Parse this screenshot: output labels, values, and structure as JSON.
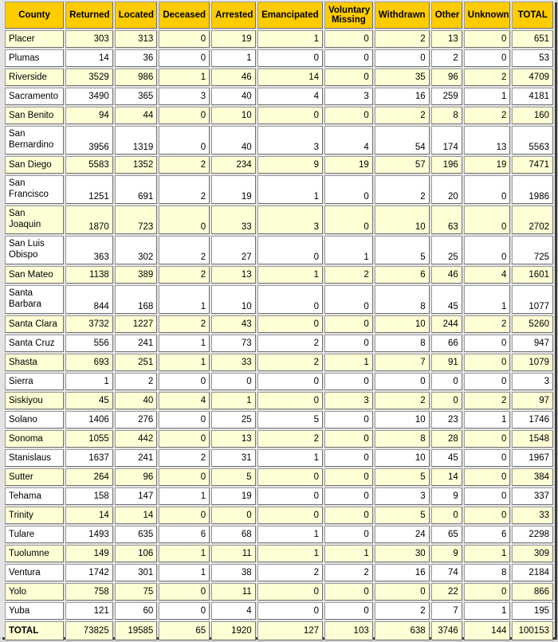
{
  "columns": [
    "County",
    "Returned",
    "Located",
    "Deceased",
    "Arrested",
    "Emancipated",
    "Voluntary\nMissing",
    "Withdrawn",
    "Other",
    "Unknown",
    "TOTAL"
  ],
  "rows": [
    [
      "Placer",
      303,
      313,
      0,
      19,
      1,
      0,
      2,
      13,
      0,
      651
    ],
    [
      "Plumas",
      14,
      36,
      0,
      1,
      0,
      0,
      0,
      2,
      0,
      53
    ],
    [
      "Riverside",
      3529,
      986,
      1,
      46,
      14,
      0,
      35,
      96,
      2,
      4709
    ],
    [
      "Sacramento",
      3490,
      365,
      3,
      40,
      4,
      3,
      16,
      259,
      1,
      4181
    ],
    [
      "San Benito",
      94,
      44,
      0,
      10,
      0,
      0,
      2,
      8,
      2,
      160
    ],
    [
      "San\nBernardino",
      3956,
      1319,
      0,
      40,
      3,
      4,
      54,
      174,
      13,
      5563
    ],
    [
      "San Diego",
      5583,
      1352,
      2,
      234,
      9,
      19,
      57,
      196,
      19,
      7471
    ],
    [
      "San\nFrancisco",
      1251,
      691,
      2,
      19,
      1,
      0,
      2,
      20,
      0,
      1986
    ],
    [
      "San\nJoaquin",
      1870,
      723,
      0,
      33,
      3,
      0,
      10,
      63,
      0,
      2702
    ],
    [
      "San Luis\nObispo",
      363,
      302,
      2,
      27,
      0,
      1,
      5,
      25,
      0,
      725
    ],
    [
      "San Mateo",
      1138,
      389,
      2,
      13,
      1,
      2,
      6,
      46,
      4,
      1601
    ],
    [
      "Santa\nBarbara",
      844,
      168,
      1,
      10,
      0,
      0,
      8,
      45,
      1,
      1077
    ],
    [
      "Santa Clara",
      3732,
      1227,
      2,
      43,
      0,
      0,
      10,
      244,
      2,
      5260
    ],
    [
      "Santa Cruz",
      556,
      241,
      1,
      73,
      2,
      0,
      8,
      66,
      0,
      947
    ],
    [
      "Shasta",
      693,
      251,
      1,
      33,
      2,
      1,
      7,
      91,
      0,
      1079
    ],
    [
      "Sierra",
      1,
      2,
      0,
      0,
      0,
      0,
      0,
      0,
      0,
      3
    ],
    [
      "Siskiyou",
      45,
      40,
      4,
      1,
      0,
      3,
      2,
      0,
      2,
      97
    ],
    [
      "Solano",
      1406,
      276,
      0,
      25,
      5,
      0,
      10,
      23,
      1,
      1746
    ],
    [
      "Sonoma",
      1055,
      442,
      0,
      13,
      2,
      0,
      8,
      28,
      0,
      1548
    ],
    [
      "Stanislaus",
      1637,
      241,
      2,
      31,
      1,
      0,
      10,
      45,
      0,
      1967
    ],
    [
      "Sutter",
      264,
      96,
      0,
      5,
      0,
      0,
      5,
      14,
      0,
      384
    ],
    [
      "Tehama",
      158,
      147,
      1,
      19,
      0,
      0,
      3,
      9,
      0,
      337
    ],
    [
      "Trinity",
      14,
      14,
      0,
      0,
      0,
      0,
      5,
      0,
      0,
      33
    ],
    [
      "Tulare",
      1493,
      635,
      6,
      68,
      1,
      0,
      24,
      65,
      6,
      2298
    ],
    [
      "Tuolumne",
      149,
      106,
      1,
      11,
      1,
      1,
      30,
      9,
      1,
      309
    ],
    [
      "Ventura",
      1742,
      301,
      1,
      38,
      2,
      2,
      16,
      74,
      8,
      2184
    ],
    [
      "Yolo",
      758,
      75,
      0,
      11,
      0,
      0,
      0,
      22,
      0,
      866
    ],
    [
      "Yuba",
      121,
      60,
      0,
      4,
      0,
      0,
      2,
      7,
      1,
      195
    ]
  ],
  "total": [
    "TOTAL",
    73825,
    19585,
    65,
    1920,
    127,
    103,
    638,
    3746,
    144,
    100153
  ],
  "colors": {
    "header": "#ffcc00",
    "row_alt": "#ffffd5",
    "row": "#ffffff"
  }
}
